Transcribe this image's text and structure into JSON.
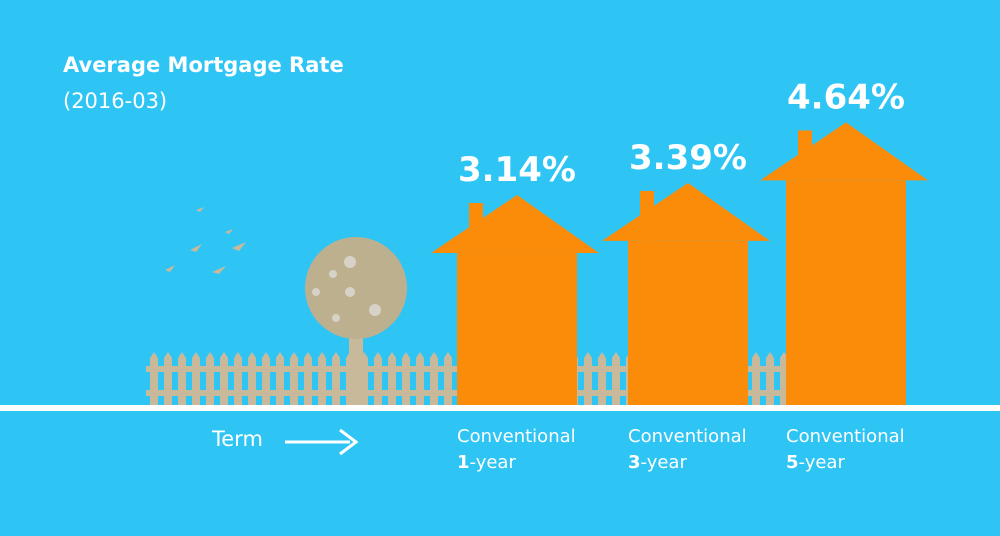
{
  "chart_data": {
    "type": "house-bar",
    "title": "Average Mortgage Rate",
    "subtitle": "(2016-03)",
    "x_label": "Term",
    "categories": [
      "Conventional 1-year",
      "Conventional 3-year",
      "Conventional 5-year"
    ],
    "values": [
      3.14,
      3.39,
      4.64
    ],
    "value_labels": [
      "3.14%",
      "3.39%",
      "4.64%"
    ],
    "color": "#fb8c09"
  }
}
